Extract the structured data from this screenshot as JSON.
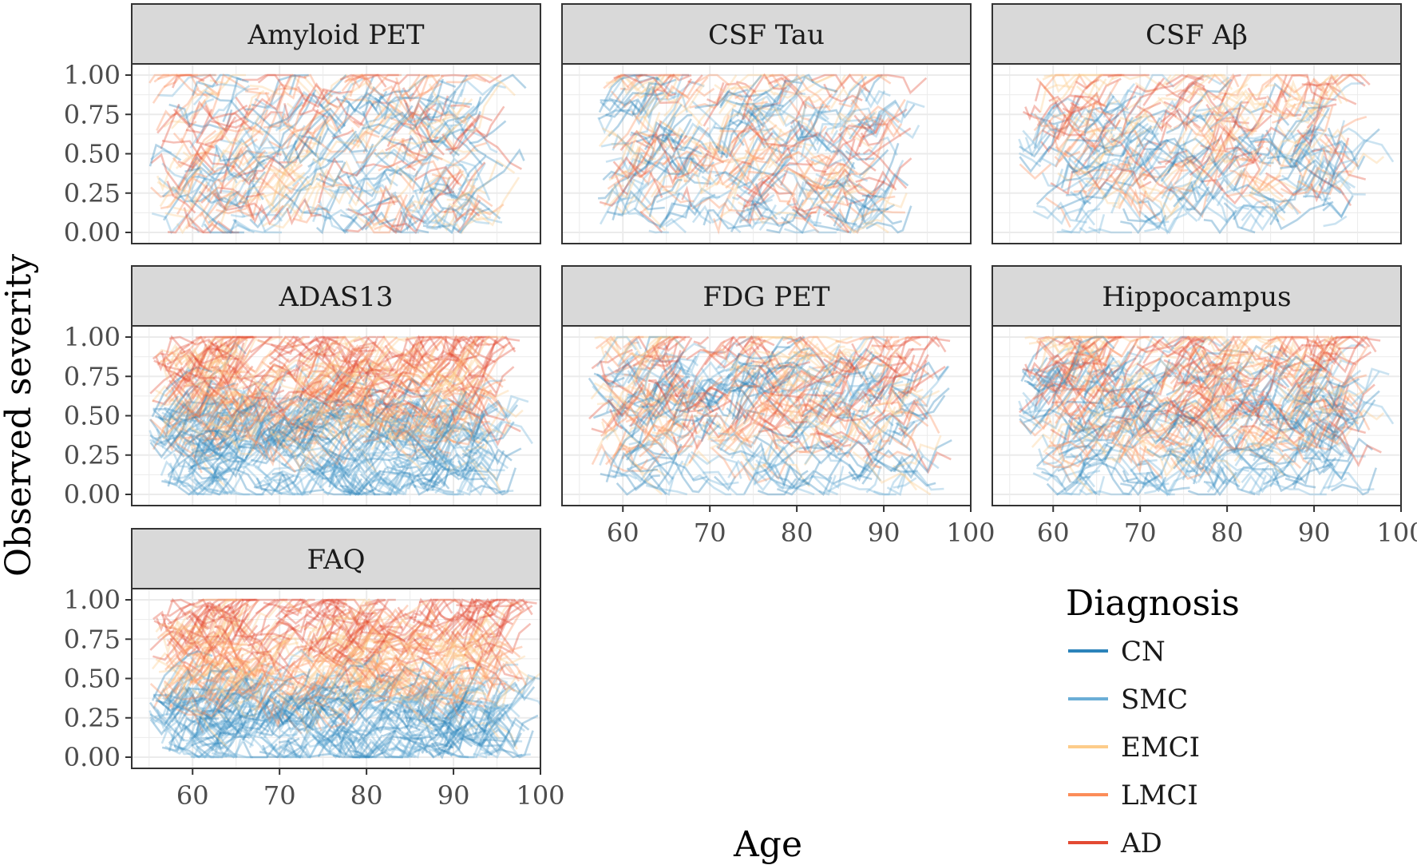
{
  "chart_data": {
    "type": "line",
    "description_free": true,
    "xlabel": "Age",
    "ylabel": "Observed severity",
    "xlim": [
      53,
      100
    ],
    "ylim": [
      0,
      1
    ],
    "x_ticks": [
      60,
      70,
      80,
      90,
      100
    ],
    "y_ticks": [
      0.0,
      0.25,
      0.5,
      0.75,
      1.0
    ],
    "y_tick_labels": [
      "0.00",
      "0.25",
      "0.50",
      "0.75",
      "1.00"
    ],
    "legend": {
      "title": "Diagnosis",
      "entries": [
        {
          "label": "CN",
          "color": "#2b83ba"
        },
        {
          "label": "SMC",
          "color": "#6baed6"
        },
        {
          "label": "EMCI",
          "color": "#fdcc8a"
        },
        {
          "label": "LMCI",
          "color": "#fc8d59"
        },
        {
          "label": "AD",
          "color": "#e34a33"
        }
      ]
    },
    "panels": [
      {
        "title": "Amyloid PET",
        "age_range": [
          55,
          96
        ],
        "band_CN": [
          0.0,
          0.9
        ],
        "band_AD": [
          0.0,
          1.0
        ],
        "density": 420
      },
      {
        "title": "CSF Tau",
        "age_range": [
          57,
          92
        ],
        "band_CN": [
          0.0,
          0.85
        ],
        "band_AD": [
          0.1,
          1.0
        ],
        "density": 380
      },
      {
        "title": "CSF Aβ",
        "age_range": [
          56,
          96
        ],
        "band_CN": [
          0.0,
          0.8
        ],
        "band_AD": [
          0.3,
          1.0
        ],
        "density": 380
      },
      {
        "title": "ADAS13",
        "age_range": [
          55,
          96
        ],
        "band_CN": [
          0.0,
          0.55
        ],
        "band_AD": [
          0.55,
          1.0
        ],
        "density": 900
      },
      {
        "title": "FDG PET",
        "age_range": [
          56,
          96
        ],
        "band_CN": [
          0.0,
          0.85
        ],
        "band_AD": [
          0.35,
          1.0
        ],
        "density": 520
      },
      {
        "title": "Hippocampus",
        "age_range": [
          56,
          96
        ],
        "band_CN": [
          0.0,
          0.8
        ],
        "band_AD": [
          0.4,
          1.0
        ],
        "density": 620
      },
      {
        "title": "FAQ",
        "age_range": [
          55,
          98
        ],
        "band_CN": [
          0.0,
          0.4
        ],
        "band_AD": [
          0.6,
          1.0
        ],
        "density": 900
      }
    ]
  }
}
